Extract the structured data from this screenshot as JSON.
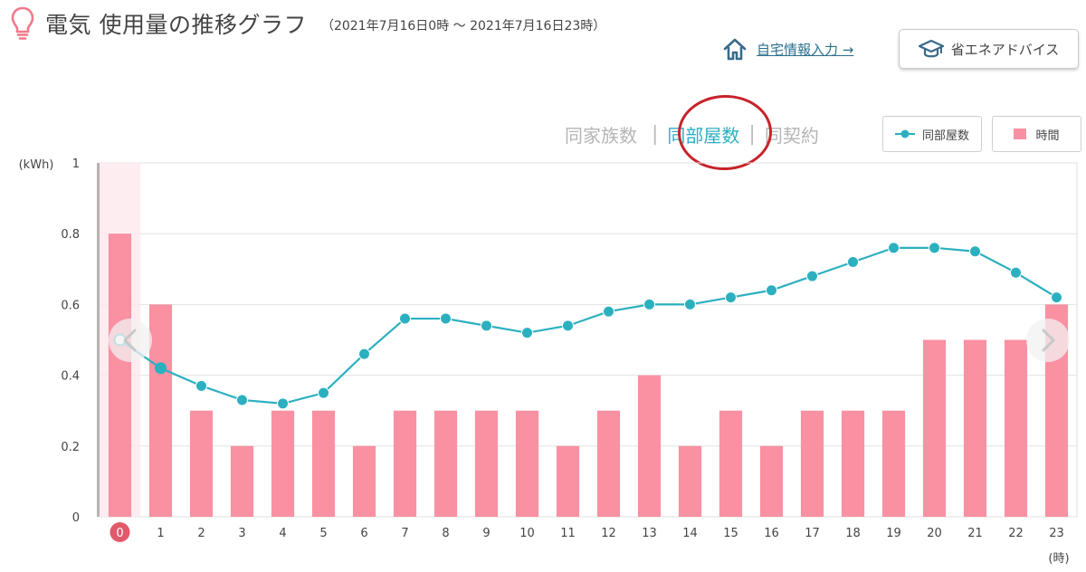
{
  "header": {
    "title": "電気 使用量の推移グラフ",
    "date_range": "（2021年7月16日0時 ～ 2021年7月16日23時）",
    "icon": "lightbulb-icon"
  },
  "actions": {
    "home_label": "自宅情報入力 →",
    "home_icon": "home-icon",
    "advice_label": "省エネアドバイス",
    "advice_icon": "graduation-cap-icon"
  },
  "compare_tabs": [
    {
      "label": "同家族数",
      "active": false
    },
    {
      "label": "同部屋数",
      "active": true
    },
    {
      "label": "同契約",
      "active": false
    }
  ],
  "legend": {
    "line_label": "同部屋数",
    "bar_label": "時間"
  },
  "nav": {
    "prev_icon": "chevron-left-icon",
    "next_icon": "chevron-right-icon"
  },
  "colors": {
    "bar": "#f991a3",
    "line": "#2bb0c0",
    "selected_badge": "#e05a6b",
    "annotation": "#c8232a"
  },
  "chart_data": {
    "type": "bar",
    "ylabel": "(kWh)",
    "xlabel": "(時)",
    "ylim": [
      0,
      1
    ],
    "yticks": [
      "0",
      "0.2",
      "0.4",
      "0.6",
      "0.8",
      "1"
    ],
    "grid": true,
    "categories": [
      "0",
      "1",
      "2",
      "3",
      "4",
      "5",
      "6",
      "7",
      "8",
      "9",
      "10",
      "11",
      "12",
      "13",
      "14",
      "15",
      "16",
      "17",
      "18",
      "19",
      "20",
      "21",
      "22",
      "23"
    ],
    "selected_index": 0,
    "series": [
      {
        "name": "時間",
        "type": "bar",
        "values": [
          0.8,
          0.6,
          0.3,
          0.2,
          0.3,
          0.3,
          0.2,
          0.3,
          0.3,
          0.3,
          0.3,
          0.2,
          0.3,
          0.4,
          0.2,
          0.3,
          0.2,
          0.3,
          0.3,
          0.3,
          0.5,
          0.5,
          0.5,
          0.6
        ]
      },
      {
        "name": "同部屋数",
        "type": "line",
        "values": [
          0.5,
          0.42,
          0.37,
          0.33,
          0.32,
          0.35,
          0.46,
          0.56,
          0.56,
          0.54,
          0.52,
          0.54,
          0.58,
          0.6,
          0.6,
          0.62,
          0.64,
          0.68,
          0.72,
          0.76,
          0.76,
          0.75,
          0.69,
          0.62
        ]
      }
    ]
  }
}
